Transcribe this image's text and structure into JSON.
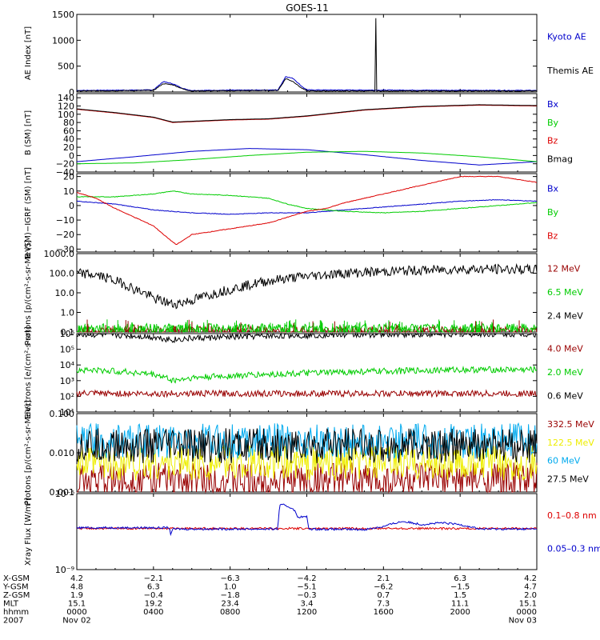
{
  "title": "GOES-11",
  "colors": {
    "black": "#000000",
    "blue": "#0000cc",
    "green": "#00cc00",
    "red": "#dd0000",
    "darkred": "#990000",
    "yellow": "#eeee00",
    "cyan": "#00aaee"
  },
  "x_axis": {
    "ticks_hours": [
      0,
      4,
      8,
      12,
      16,
      20,
      24
    ],
    "row_labels": [
      "X-GSM",
      "Y-GSM",
      "Z-GSM",
      "MLT",
      "hhmm",
      "2007"
    ],
    "rows": {
      "X-GSM": [
        "4.2",
        "−2.1",
        "−6.3",
        "−4.2",
        "2.1",
        "6.3",
        "4.2"
      ],
      "Y-GSM": [
        "4.8",
        "6.3",
        "1.0",
        "−5.1",
        "−6.2",
        "−1.5",
        "4.7"
      ],
      "Z-GSM": [
        "1.9",
        "−0.4",
        "−1.8",
        "−0.3",
        "0.7",
        "1.5",
        "2.0"
      ],
      "MLT": [
        "15.1",
        "19.2",
        "23.4",
        "3.4",
        "7.3",
        "11.1",
        "15.1"
      ],
      "hhmm": [
        "0000",
        "0400",
        "0800",
        "1200",
        "1600",
        "2000",
        "0000"
      ]
    },
    "date_start": "Nov 02",
    "date_end": "Nov 03"
  },
  "chart_data": [
    {
      "id": "ae",
      "type": "line",
      "ylabel": "AE Index [nT]",
      "ylim": [
        0,
        1500
      ],
      "yticks": [
        "0",
        "500",
        "1000",
        "1500"
      ],
      "series": [
        {
          "name": "Kyoto AE",
          "color": "blue",
          "x": [
            0,
            4.0,
            4.5,
            5.0,
            5.6,
            6.0,
            10.5,
            10.9,
            11.3,
            11.7,
            12.0,
            24
          ],
          "y": [
            30,
            40,
            200,
            160,
            60,
            30,
            40,
            300,
            260,
            120,
            40,
            30
          ]
        },
        {
          "name": "Themis AE",
          "color": "black",
          "x": [
            0,
            4.0,
            4.5,
            5.0,
            5.6,
            6.0,
            10.5,
            10.9,
            11.3,
            11.7,
            12.0,
            15.59,
            15.6,
            15.62,
            15.64,
            24
          ],
          "y": [
            20,
            30,
            160,
            140,
            50,
            20,
            30,
            260,
            200,
            80,
            20,
            20,
            1420,
            700,
            20,
            20
          ]
        }
      ]
    },
    {
      "id": "bsm",
      "type": "line",
      "ylabel": "B (SM) [nT]",
      "ylim": [
        -40,
        150
      ],
      "yticks": [
        "−40",
        "−20",
        "0",
        "20",
        "40",
        "60",
        "80",
        "100",
        "120",
        "140"
      ],
      "series": [
        {
          "name": "Bx",
          "color": "blue",
          "x": [
            0,
            3,
            6,
            9,
            12,
            15,
            18,
            21,
            24
          ],
          "y": [
            -15,
            -3,
            10,
            17,
            14,
            2,
            -12,
            -23,
            -15
          ]
        },
        {
          "name": "By",
          "color": "green",
          "x": [
            0,
            3,
            6,
            9,
            12,
            15,
            18,
            21,
            24
          ],
          "y": [
            -20,
            -18,
            -10,
            0,
            8,
            10,
            6,
            -3,
            -15
          ]
        },
        {
          "name": "Bz",
          "color": "red",
          "x": [
            0,
            2,
            4,
            5,
            6,
            8,
            10,
            12,
            15,
            18,
            21,
            24
          ],
          "y": [
            112,
            103,
            92,
            80,
            82,
            86,
            88,
            95,
            110,
            118,
            122,
            120
          ]
        },
        {
          "name": "Bmag",
          "color": "black",
          "x": [
            0,
            2,
            4,
            5,
            6,
            8,
            10,
            12,
            15,
            18,
            21,
            24
          ],
          "y": [
            113,
            104,
            93,
            81,
            83,
            87,
            89,
            96,
            111,
            119,
            123,
            121
          ]
        }
      ]
    },
    {
      "id": "bdiff",
      "type": "line",
      "ylabel": "B (SM)−IGRF (SM) [nT]",
      "ylim": [
        -32,
        22
      ],
      "yticks": [
        "−30",
        "−20",
        "−10",
        "0",
        "10",
        "20"
      ],
      "series": [
        {
          "name": "Bx",
          "color": "blue",
          "x": [
            0,
            2,
            4,
            6,
            8,
            10,
            12,
            14,
            16,
            18,
            20,
            22,
            24
          ],
          "y": [
            3,
            1,
            -3,
            -5,
            -6,
            -5,
            -5,
            -3,
            -1,
            1,
            3,
            4,
            3
          ]
        },
        {
          "name": "By",
          "color": "green",
          "x": [
            0,
            2,
            4,
            5,
            6,
            8,
            10,
            11,
            12,
            14,
            16,
            18,
            20,
            22,
            24
          ],
          "y": [
            6,
            6,
            8,
            10,
            8,
            7,
            5,
            1,
            -2,
            -4,
            -5,
            -4,
            -2,
            0,
            2
          ]
        },
        {
          "name": "Bz",
          "color": "red",
          "x": [
            0,
            1,
            2,
            3,
            4,
            4.8,
            5.2,
            6,
            8,
            10,
            11,
            12,
            13,
            14,
            16,
            18,
            20,
            22,
            24
          ],
          "y": [
            9,
            5,
            -2,
            -8,
            -14,
            -23,
            -27,
            -20,
            -16,
            -12,
            -8,
            -4,
            -2,
            2,
            8,
            14,
            20,
            20,
            16
          ]
        }
      ]
    },
    {
      "id": "protons_low",
      "type": "line",
      "yscale": "log",
      "ylabel": "Protons [p/(cm²-s-sr-MeV)]",
      "ylim": [
        0.1,
        1000
      ],
      "yticks": [
        "0.1",
        "1.0",
        "10.0",
        "100.0",
        "1000.0"
      ],
      "series": [
        {
          "name": "12 MeV",
          "color": "darkred",
          "x": [
            0,
            24
          ],
          "y": [
            0.11,
            0.11
          ]
        },
        {
          "name": "6.5 MeV",
          "color": "green",
          "x": [
            0,
            24
          ],
          "y": [
            0.15,
            0.15
          ]
        },
        {
          "name": "2.4 MeV",
          "color": "black",
          "x": [
            0,
            1,
            2,
            3,
            4,
            5,
            6,
            7,
            8,
            9,
            10,
            12,
            14,
            16,
            18,
            20,
            22,
            24
          ],
          "y": [
            100,
            80,
            40,
            15,
            5,
            2.5,
            4,
            8,
            15,
            25,
            40,
            70,
            100,
            120,
            140,
            160,
            160,
            150
          ]
        }
      ]
    },
    {
      "id": "electrons",
      "type": "line",
      "yscale": "log",
      "ylabel": "Electrons [e/(cm²-s-sr)]",
      "ylim": [
        10,
        1000000
      ],
      "yticks": [
        "10¹",
        "10²",
        "10³",
        "10⁴",
        "10⁵",
        "10⁶"
      ],
      "series": [
        {
          "name": "4.0 MeV",
          "color": "darkred",
          "x": [
            0,
            24
          ],
          "y": [
            150,
            150
          ]
        },
        {
          "name": "2.0 MeV",
          "color": "green",
          "x": [
            0,
            2,
            4,
            5,
            6,
            8,
            10,
            12,
            16,
            20,
            24
          ],
          "y": [
            5000,
            4000,
            2500,
            1000,
            1500,
            2000,
            2500,
            3000,
            4000,
            5000,
            5000
          ]
        },
        {
          "name": "0.6 MeV",
          "color": "black",
          "x": [
            0,
            2,
            4,
            5,
            6,
            8,
            12,
            16,
            20,
            24
          ],
          "y": [
            900000,
            800000,
            600000,
            400000,
            500000,
            600000,
            800000,
            900000,
            950000,
            950000
          ]
        }
      ]
    },
    {
      "id": "protons_high",
      "type": "line",
      "yscale": "log",
      "ylabel": "Protons [p/(cm²-s-sr-MeV)]",
      "ylim": [
        0.001,
        0.1
      ],
      "yticks": [
        "0.001",
        "0.010",
        "0.100"
      ],
      "series": [
        {
          "name": "332.5 MeV",
          "color": "darkred",
          "x": [
            0,
            24
          ],
          "y": [
            0.002,
            0.002
          ]
        },
        {
          "name": "122.5 MeV",
          "color": "yellow",
          "x": [
            0,
            24
          ],
          "y": [
            0.0055,
            0.0055
          ]
        },
        {
          "name": "60 MeV",
          "color": "cyan",
          "x": [
            0,
            24
          ],
          "y": [
            0.02,
            0.02
          ]
        },
        {
          "name": "27.5 MeV",
          "color": "black",
          "x": [
            0,
            24
          ],
          "y": [
            0.015,
            0.015
          ]
        }
      ]
    },
    {
      "id": "xray",
      "type": "line",
      "yscale": "log",
      "ylabel": "Xray Flux [W/m²]",
      "ylim": [
        1e-09,
        1e-06
      ],
      "yticks": [
        "10⁻⁹",
        "10⁻⁶"
      ],
      "series": [
        {
          "name": "0.1–0.8 nm",
          "color": "red",
          "x": [
            0,
            24
          ],
          "y": [
            4.2e-08,
            4.2e-08
          ]
        },
        {
          "name": "0.05–0.3 nm",
          "color": "blue",
          "x": [
            0,
            4.8,
            4.9,
            5.0,
            10.5,
            10.6,
            10.8,
            11.3,
            11.5,
            12.0,
            12.1,
            15,
            16,
            17,
            18,
            19,
            20,
            21,
            22,
            24
          ],
          "y": [
            4.5e-08,
            4.5e-08,
            2.5e-08,
            4e-08,
            4e-08,
            3.5e-07,
            3.5e-07,
            2.5e-07,
            1.2e-07,
            1.2e-07,
            4e-08,
            3.8e-08,
            5e-08,
            8e-08,
            6e-08,
            7e-08,
            6e-08,
            4e-08,
            4e-08,
            4e-08
          ]
        }
      ]
    }
  ],
  "legends": {
    "ae": [
      [
        "Kyoto AE",
        "blue"
      ],
      [
        "Themis AE",
        "black"
      ]
    ],
    "bsm": [
      [
        "Bx",
        "blue"
      ],
      [
        "By",
        "green"
      ],
      [
        "Bz",
        "red"
      ],
      [
        "Bmag",
        "black"
      ]
    ],
    "bdiff": [
      [
        "Bx",
        "blue"
      ],
      [
        "By",
        "green"
      ],
      [
        "Bz",
        "red"
      ]
    ],
    "protons_low": [
      [
        "12 MeV",
        "darkred"
      ],
      [
        "6.5 MeV",
        "green"
      ],
      [
        "2.4 MeV",
        "black"
      ]
    ],
    "electrons": [
      [
        "4.0 MeV",
        "darkred"
      ],
      [
        "2.0 MeV",
        "green"
      ],
      [
        "0.6 MeV",
        "black"
      ]
    ],
    "protons_high": [
      [
        "332.5 MeV",
        "darkred"
      ],
      [
        "122.5 MeV",
        "yellow"
      ],
      [
        "60 MeV",
        "cyan"
      ],
      [
        "27.5 MeV",
        "black"
      ]
    ],
    "xray": [
      [
        "0.1–0.8 nm",
        "red"
      ],
      [
        "0.05–0.3 nm",
        "blue"
      ]
    ]
  }
}
